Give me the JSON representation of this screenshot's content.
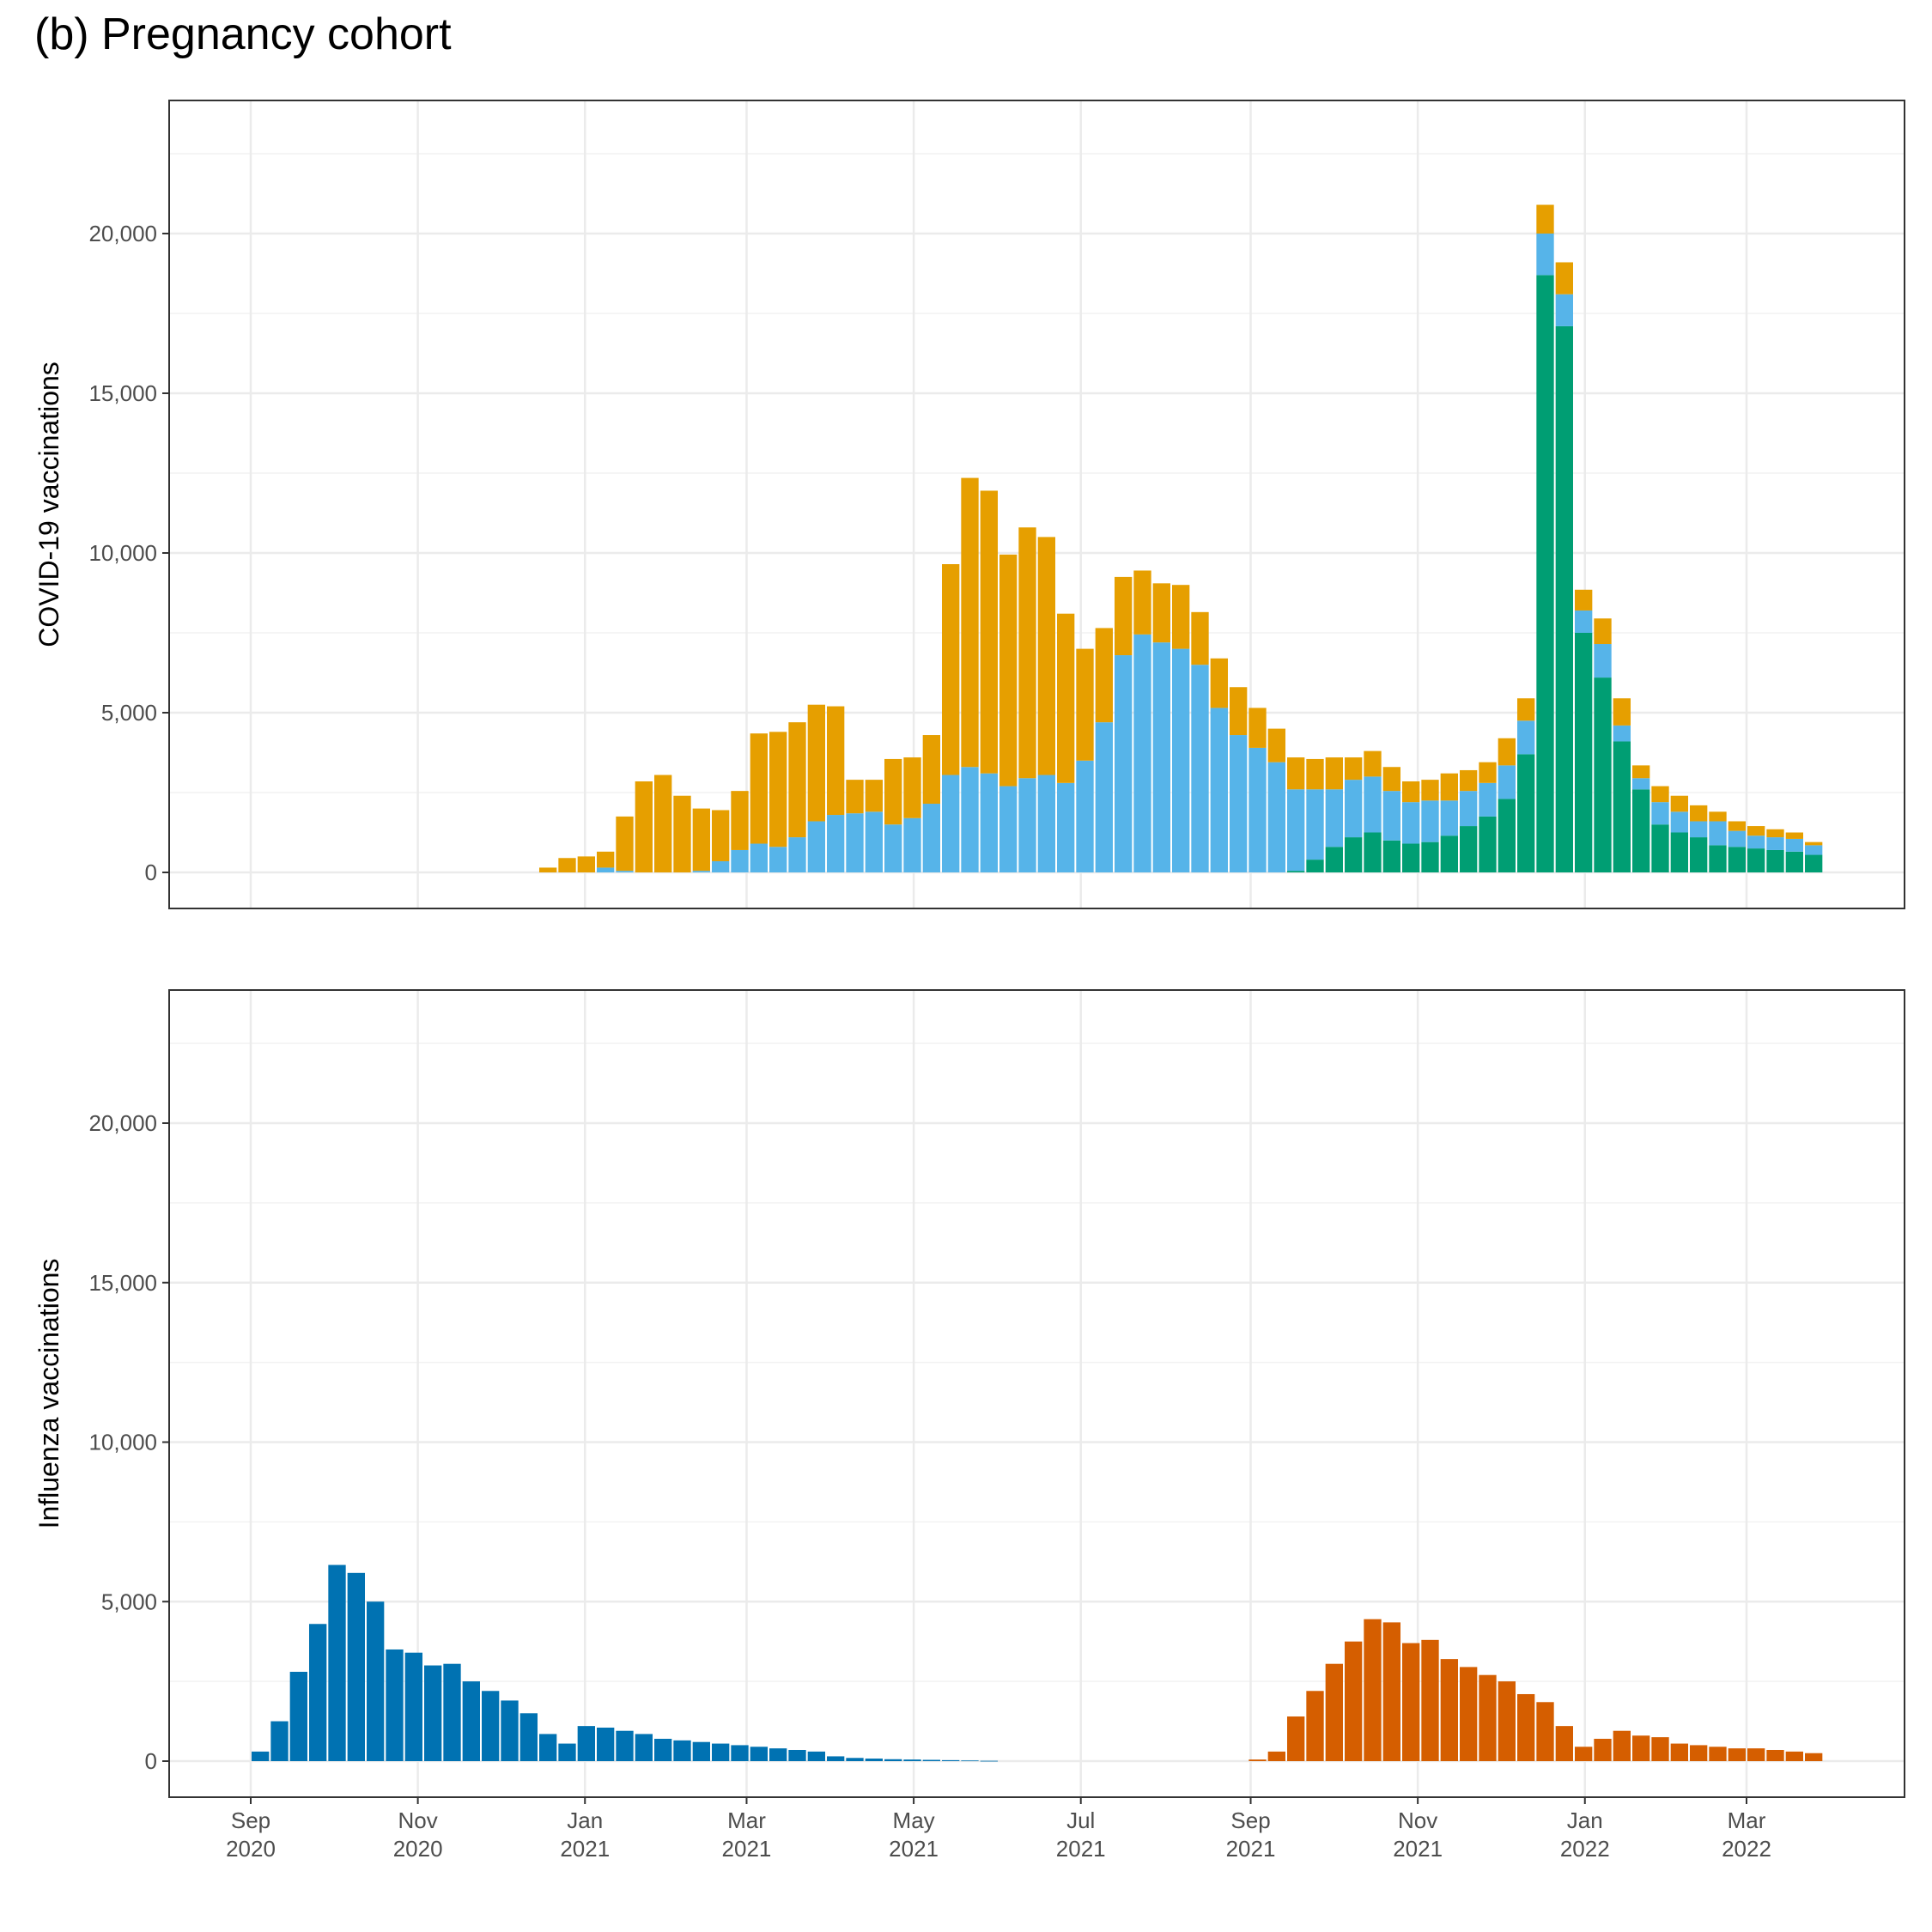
{
  "figure_title": "(b) Pregnancy cohort",
  "chart_data": [
    {
      "type": "bar",
      "stacked": true,
      "ylabel": "COVID-19 vaccinations",
      "ylim": [
        0,
        23800
      ],
      "y_ticks": [
        0,
        5000,
        10000,
        15000,
        20000
      ],
      "y_tick_labels": [
        "0",
        "5,000",
        "10,000",
        "15,000",
        "20,000"
      ],
      "grid": true,
      "x_start": "2020-09-01",
      "x_end": "2022-04-30",
      "bar_start_dates": [
        "2020-12-01",
        "2020-12-08",
        "2020-12-15",
        "2020-12-22",
        "2020-12-29",
        "2021-01-05",
        "2021-01-12",
        "2021-01-19",
        "2021-01-26",
        "2021-02-02",
        "2021-02-09",
        "2021-02-16",
        "2021-02-23",
        "2021-03-02",
        "2021-03-09",
        "2021-03-16",
        "2021-03-23",
        "2021-03-30",
        "2021-04-06",
        "2021-04-13",
        "2021-04-20",
        "2021-04-27",
        "2021-05-04",
        "2021-05-11",
        "2021-05-18",
        "2021-05-25",
        "2021-06-01",
        "2021-06-08",
        "2021-06-15",
        "2021-06-22",
        "2021-06-29",
        "2021-07-06",
        "2021-07-13",
        "2021-07-20",
        "2021-07-27",
        "2021-08-03",
        "2021-08-10",
        "2021-08-17",
        "2021-08-24",
        "2021-08-31",
        "2021-09-07",
        "2021-09-14",
        "2021-09-21",
        "2021-09-28",
        "2021-10-05",
        "2021-10-12",
        "2021-10-19",
        "2021-10-26",
        "2021-11-02",
        "2021-11-09",
        "2021-11-16",
        "2021-11-23",
        "2021-11-30",
        "2021-12-07",
        "2021-12-14",
        "2021-12-21",
        "2021-12-28",
        "2022-01-04",
        "2022-01-11",
        "2022-01-18",
        "2022-01-25",
        "2022-02-01",
        "2022-02-08",
        "2022-02-15",
        "2022-02-22",
        "2022-03-01",
        "2022-03-08",
        "2022-03-15",
        "2022-03-22"
      ],
      "series": [
        {
          "key": "dose3",
          "color": "#009E73",
          "values": [
            0,
            0,
            0,
            0,
            0,
            0,
            0,
            0,
            0,
            0,
            0,
            0,
            0,
            0,
            0,
            0,
            0,
            0,
            0,
            0,
            0,
            0,
            0,
            0,
            0,
            0,
            0,
            0,
            0,
            0,
            0,
            0,
            0,
            0,
            0,
            0,
            0,
            0,
            0,
            0,
            0,
            50,
            400,
            800,
            1100,
            1250,
            1000,
            900,
            950,
            1150,
            1450,
            1750,
            2300,
            3700,
            18700,
            17100,
            7500,
            6100,
            4100,
            2600,
            1500,
            1250,
            1100,
            850,
            800,
            750,
            700,
            650,
            550
          ]
        },
        {
          "key": "dose2",
          "color": "#56B4E9",
          "values": [
            0,
            0,
            0,
            0,
            0,
            150,
            50,
            0,
            0,
            0,
            50,
            350,
            700,
            900,
            800,
            1100,
            1600,
            1800,
            1850,
            1900,
            1500,
            1700,
            2150,
            3050,
            3300,
            3100,
            2700,
            2950,
            3050,
            2800,
            3500,
            4700,
            6800,
            7450,
            7200,
            7000,
            6500,
            5150,
            4300,
            3900,
            3450,
            2550,
            2200,
            1800,
            1800,
            1750,
            1550,
            1300,
            1300,
            1100,
            1100,
            1050,
            1050,
            1050,
            1300,
            1000,
            700,
            1050,
            500,
            350,
            700,
            650,
            500,
            750,
            500,
            400,
            400,
            400,
            300
          ]
        },
        {
          "key": "dose1",
          "color": "#E69F00",
          "values": [
            0,
            0,
            150,
            450,
            500,
            500,
            1700,
            2850,
            3050,
            2400,
            1950,
            1600,
            1850,
            3450,
            3600,
            3600,
            3650,
            3400,
            1050,
            1000,
            2050,
            1900,
            2150,
            6600,
            9050,
            8850,
            7250,
            7850,
            7450,
            5300,
            3500,
            2950,
            2450,
            2000,
            1850,
            2000,
            1650,
            1550,
            1500,
            1250,
            1050,
            1000,
            950,
            1000,
            700,
            800,
            750,
            650,
            650,
            850,
            650,
            650,
            850,
            700,
            900,
            1000,
            650,
            800,
            850,
            400,
            500,
            500,
            500,
            300,
            300,
            300,
            250,
            200,
            100
          ]
        }
      ]
    },
    {
      "type": "bar",
      "ylabel": "Influenza vaccinations",
      "ylim": [
        0,
        23800
      ],
      "y_ticks": [
        0,
        5000,
        10000,
        15000,
        20000
      ],
      "y_tick_labels": [
        "0",
        "5,000",
        "10,000",
        "15,000",
        "20,000"
      ],
      "grid": true,
      "x_start": "2020-09-01",
      "x_end": "2022-04-30",
      "x_ticks": [
        "2020-09-01",
        "2020-11-01",
        "2021-01-01",
        "2021-03-01",
        "2021-05-01",
        "2021-07-01",
        "2021-09-01",
        "2021-11-01",
        "2022-01-01",
        "2022-03-01"
      ],
      "x_tick_labels": [
        [
          "Sep",
          "2020"
        ],
        [
          "Nov",
          "2020"
        ],
        [
          "Jan",
          "2021"
        ],
        [
          "Mar",
          "2021"
        ],
        [
          "May",
          "2021"
        ],
        [
          "Jul",
          "2021"
        ],
        [
          "Sep",
          "2021"
        ],
        [
          "Nov",
          "2021"
        ],
        [
          "Jan",
          "2022"
        ],
        [
          "Mar",
          "2022"
        ]
      ],
      "series": [
        {
          "key": "season-2020-21",
          "color": "#0072B2",
          "bar_start_dates": [
            "2020-09-01",
            "2020-09-08",
            "2020-09-15",
            "2020-09-22",
            "2020-09-29",
            "2020-10-06",
            "2020-10-13",
            "2020-10-20",
            "2020-10-27",
            "2020-11-03",
            "2020-11-10",
            "2020-11-17",
            "2020-11-24",
            "2020-12-01",
            "2020-12-08",
            "2020-12-15",
            "2020-12-22",
            "2020-12-29",
            "2021-01-05",
            "2021-01-12",
            "2021-01-19",
            "2021-01-26",
            "2021-02-02",
            "2021-02-09",
            "2021-02-16",
            "2021-02-23",
            "2021-03-02",
            "2021-03-09",
            "2021-03-16",
            "2021-03-23",
            "2021-03-30",
            "2021-04-06",
            "2021-04-13",
            "2021-04-20",
            "2021-04-27",
            "2021-05-04",
            "2021-05-11",
            "2021-05-18",
            "2021-05-25"
          ],
          "values": [
            300,
            1250,
            2800,
            4300,
            6150,
            5900,
            5000,
            3500,
            3400,
            3000,
            3050,
            2500,
            2200,
            1900,
            1500,
            850,
            550,
            1100,
            1050,
            950,
            850,
            700,
            650,
            600,
            550,
            500,
            450,
            400,
            350,
            300,
            150,
            100,
            80,
            60,
            50,
            40,
            30,
            20,
            10
          ]
        },
        {
          "key": "season-2021-22",
          "color": "#D55E00",
          "bar_start_dates": [
            "2021-08-31",
            "2021-09-07",
            "2021-09-14",
            "2021-09-21",
            "2021-09-28",
            "2021-10-05",
            "2021-10-12",
            "2021-10-19",
            "2021-10-26",
            "2021-11-02",
            "2021-11-09",
            "2021-11-16",
            "2021-11-23",
            "2021-11-30",
            "2021-12-07",
            "2021-12-14",
            "2021-12-21",
            "2021-12-28",
            "2022-01-04",
            "2022-01-11",
            "2022-01-18",
            "2022-01-25",
            "2022-02-01",
            "2022-02-08",
            "2022-02-15",
            "2022-02-22",
            "2022-03-01",
            "2022-03-08",
            "2022-03-15",
            "2022-03-22"
          ],
          "values": [
            50,
            300,
            1400,
            2200,
            3050,
            3750,
            4450,
            4350,
            3700,
            3800,
            3200,
            2950,
            2700,
            2500,
            2100,
            1850,
            1100,
            450,
            700,
            950,
            800,
            750,
            550,
            500,
            450,
            400,
            400,
            350,
            300,
            250
          ]
        }
      ]
    }
  ]
}
